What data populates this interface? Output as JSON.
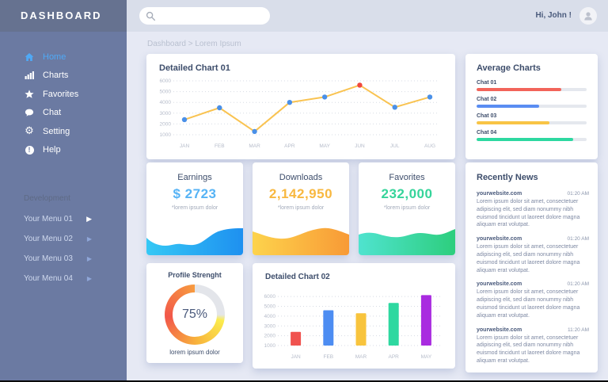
{
  "sidebar": {
    "title": "DASHBOARD",
    "menu": [
      {
        "label": "Home",
        "icon": "home-icon",
        "active": true
      },
      {
        "label": "Charts",
        "icon": "charts-icon",
        "active": false
      },
      {
        "label": "Favorites",
        "icon": "star-icon",
        "active": false
      },
      {
        "label": "Chat",
        "icon": "chat-icon",
        "active": false
      },
      {
        "label": "Setting",
        "icon": "gear-icon",
        "active": false
      },
      {
        "label": "Help",
        "icon": "help-icon",
        "active": false
      }
    ],
    "section_label": "Development",
    "submenu": [
      "Your Menu 01",
      "Your Menu 02",
      "Your Menu 03",
      "Your Menu 04"
    ]
  },
  "topbar": {
    "search_value": "",
    "search_placeholder": "",
    "greeting": "Hi, John !"
  },
  "breadcrumb": "Dashboard > Lorem Ipsum",
  "panels": {
    "chart01": {
      "title": "Detailed Chart 01"
    },
    "average": {
      "title": "Average Charts"
    },
    "stats": {
      "cards": [
        {
          "title": "Earnings",
          "value": "$ 2723",
          "subtitle": "*lorem ipsum dolor",
          "value_color": "#56b3f5",
          "wave_from": "#35c8f5",
          "wave_to": "#1e90f0"
        },
        {
          "title": "Downloads",
          "value": "2,142,950",
          "subtitle": "*lorem ipsum dolor",
          "value_color": "#f8b840",
          "wave_from": "#fdd34c",
          "wave_to": "#f89a36"
        },
        {
          "title": "Favorites",
          "value": "232,000",
          "subtitle": "*lorem ipsum dolor",
          "value_color": "#35d49a",
          "wave_from": "#4fe3cf",
          "wave_to": "#2dce7d"
        }
      ]
    },
    "profile": {
      "title": "Profile Strenght",
      "percent_label": "75%",
      "caption": "lorem ipsum dolor"
    },
    "chart02": {
      "title": "Detailed Chart 02"
    },
    "news": {
      "title": "Recently News",
      "items": [
        {
          "site": "yourwebsite.com",
          "time": "01:20 AM",
          "body": "Lorem ipsum dolor sit amet, consectetuer adipiscing elit, sed diam nonummy nibh euismod tincidunt ut laoreet dolore magna aliquam erat volutpat."
        },
        {
          "site": "yourwebsite.com",
          "time": "01:20 AM",
          "body": "Lorem ipsum dolor sit amet, consectetuer adipiscing elit, sed diam nonummy nibh euismod tincidunt ut laoreet dolore magna aliquam erat volutpat."
        },
        {
          "site": "yourwebsite.com",
          "time": "01:20 AM",
          "body": "Lorem ipsum dolor sit amet, consectetuer adipiscing elit, sed diam nonummy nibh euismod tincidunt ut laoreet dolore magna aliquam erat volutpat."
        },
        {
          "site": "yourwebsite.com",
          "time": "11:20 AM",
          "body": "Lorem ipsum dolor sit amet, consectetuer adipiscing elit, sed diam nonummy nibh euismod tincidunt ut laoreet dolore magna aliquam erat volutpat."
        }
      ]
    }
  },
  "chart_data": [
    {
      "id": "detailed-chart-01",
      "type": "line",
      "title": "Detailed Chart 01",
      "x": [
        "JAN",
        "FEB",
        "MAR",
        "APR",
        "MAY",
        "JUN",
        "JUL",
        "AUG"
      ],
      "values": [
        2400,
        3500,
        1300,
        4000,
        4500,
        5600,
        3550,
        4500
      ],
      "yticks": [
        1000,
        2000,
        3000,
        4000,
        5000,
        6000
      ],
      "ylim": [
        1000,
        6000
      ],
      "line_color": "#f9c351",
      "point_color": "#4a90e8",
      "highlight_index": 5,
      "highlight_color": "#f0483e",
      "grid": "dotted horizontal"
    },
    {
      "id": "detailed-chart-02",
      "type": "bar",
      "title": "Detailed Chart 02",
      "categories": [
        "JAN",
        "FEB",
        "MAR",
        "APR",
        "MAY"
      ],
      "values": [
        2400,
        4600,
        4300,
        5350,
        6150
      ],
      "colors": [
        "#f0534f",
        "#4d8df2",
        "#f8c43d",
        "#2ed8a0",
        "#a92be0"
      ],
      "yticks": [
        1000,
        2000,
        3000,
        4000,
        5000,
        6000
      ],
      "ylim": [
        1000,
        6500
      ],
      "grid": "dotted horizontal"
    },
    {
      "id": "average-charts",
      "type": "bar",
      "orientation": "horizontal",
      "title": "Average Charts",
      "categories": [
        "Chat 01",
        "Chat 02",
        "Chat 03",
        "Chat 04"
      ],
      "values": [
        77,
        57,
        66,
        88
      ],
      "unit": "%",
      "colors": [
        "#f2645a",
        "#5a8df2",
        "#f8c445",
        "#2ed8a0"
      ],
      "track_color": "#e5e8ee"
    },
    {
      "id": "profile-strength",
      "type": "donut",
      "title": "Profile Strenght",
      "value": 75,
      "unit": "%",
      "track_color": "#e3e5ea",
      "gradient_colors": [
        "#fbec4d",
        "#f8b43c",
        "#f2574a",
        "#f79b3f"
      ]
    }
  ]
}
